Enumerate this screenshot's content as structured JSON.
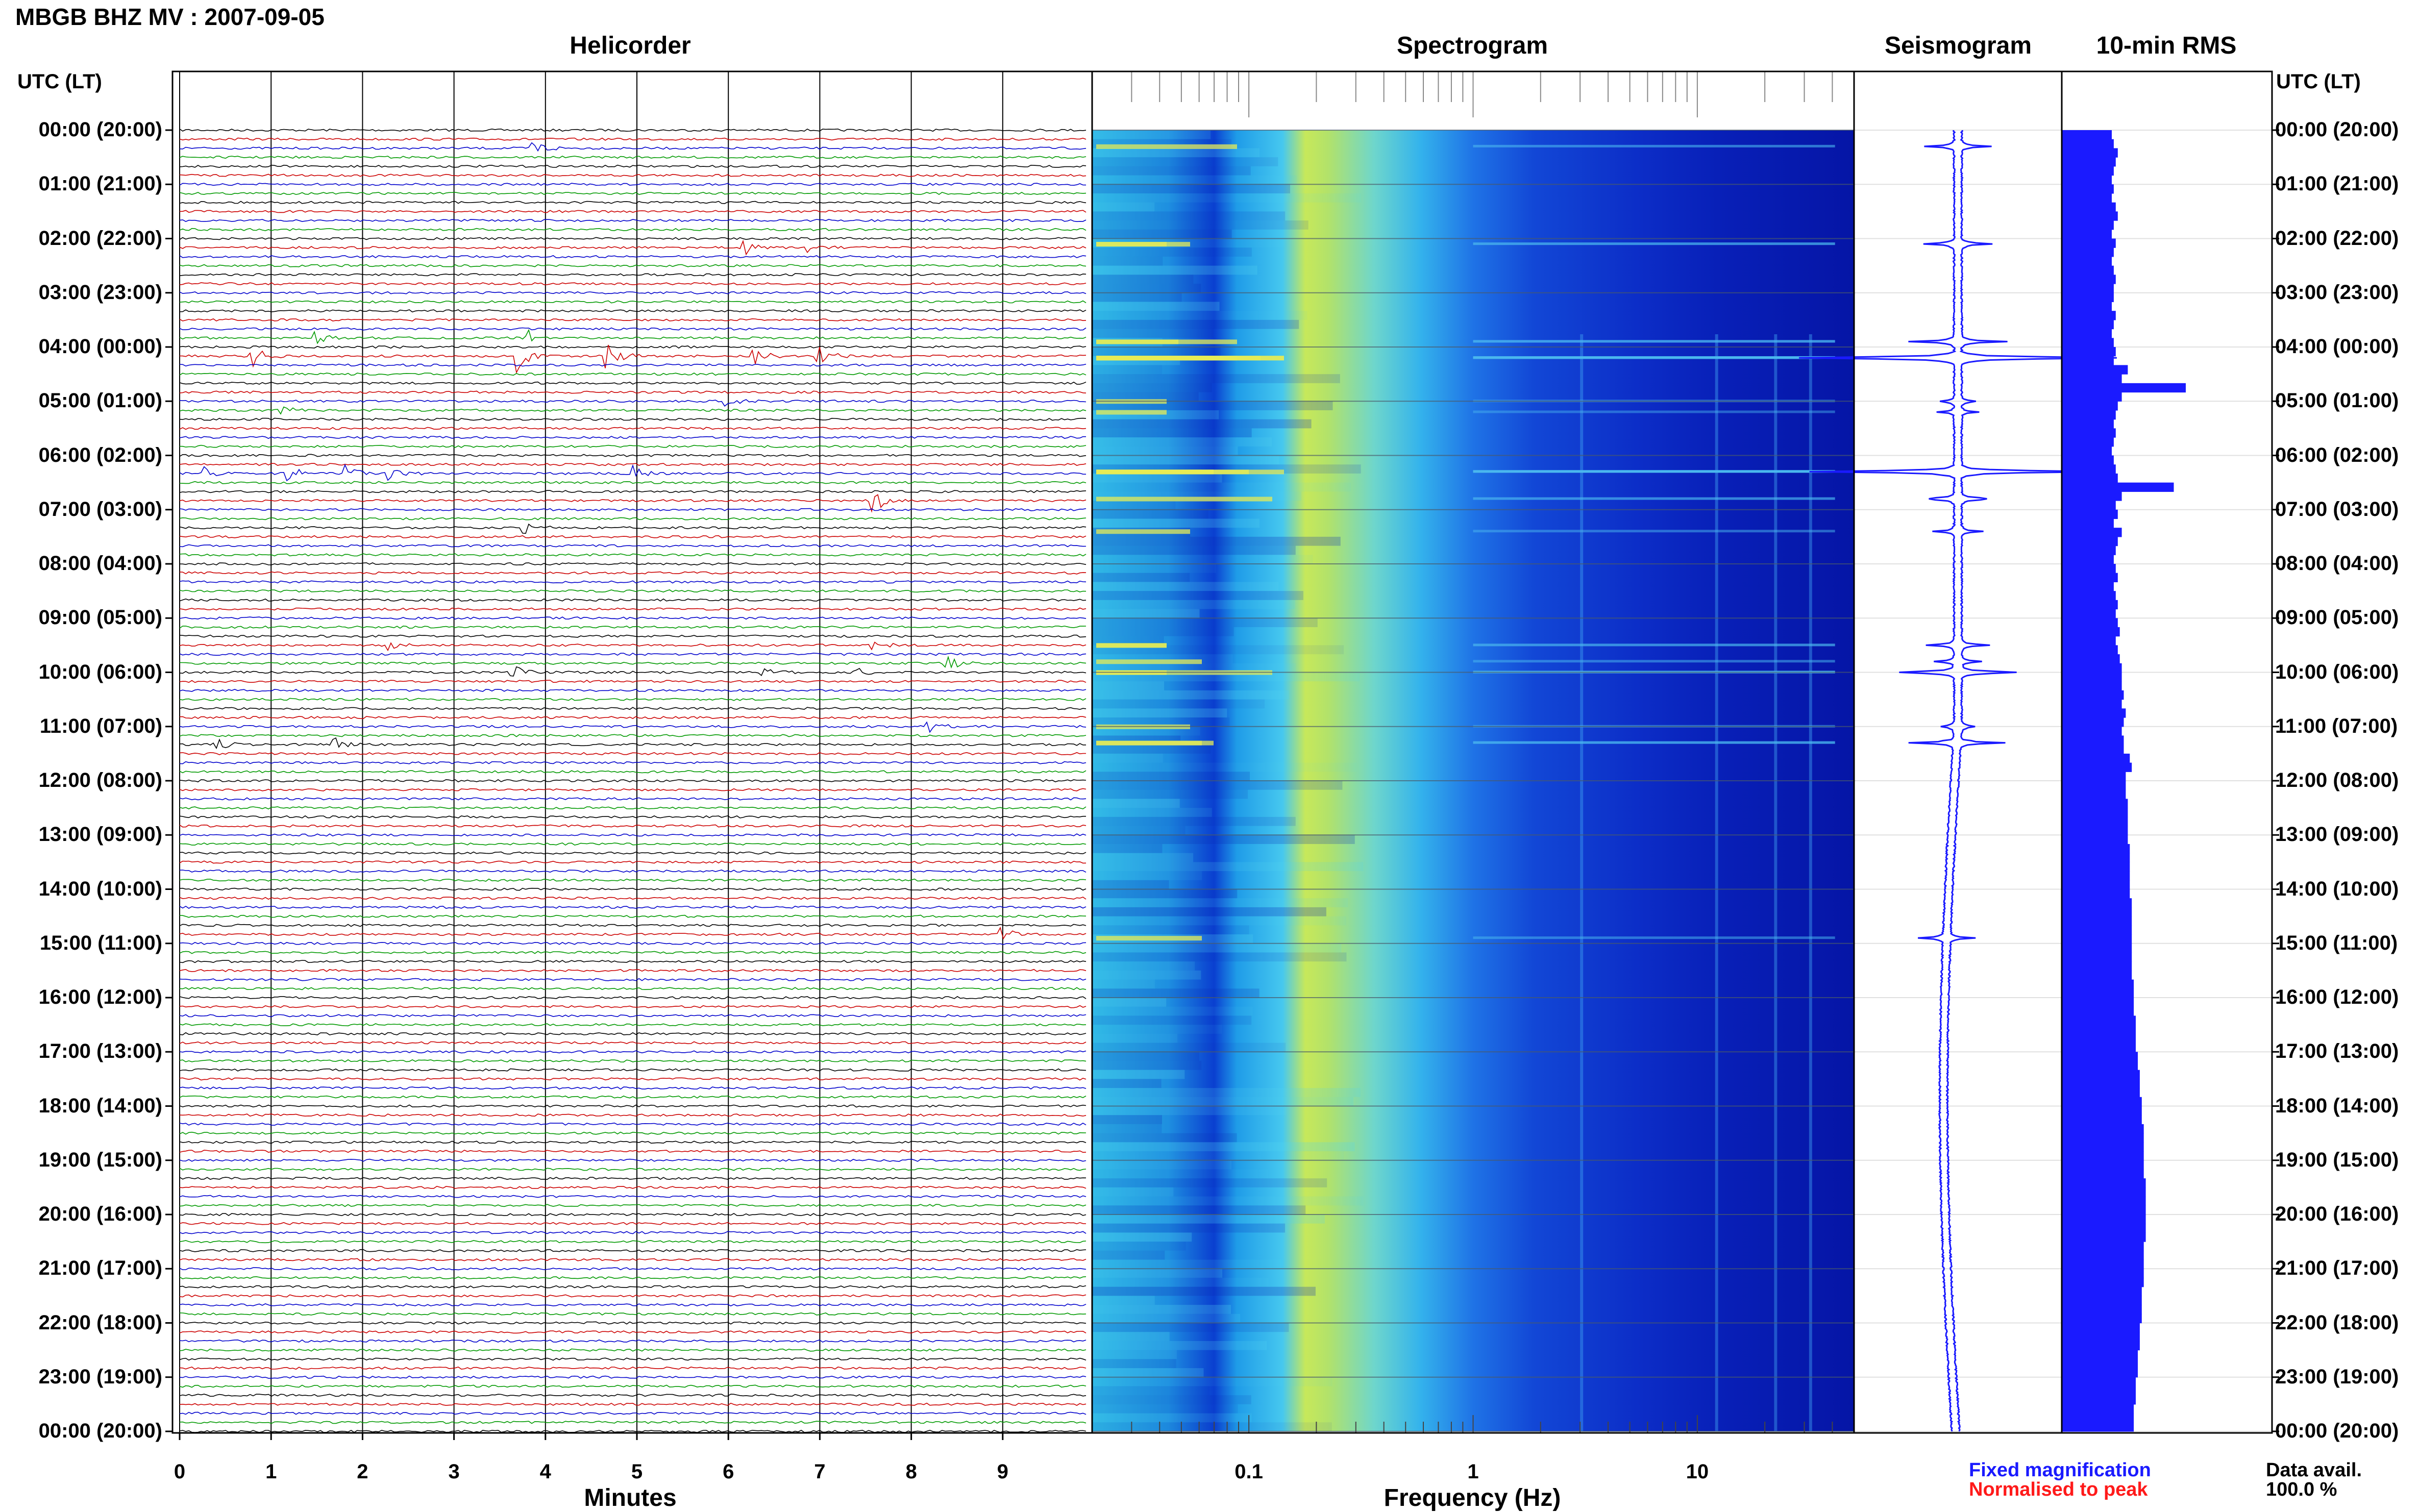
{
  "title": "MBGB BHZ MV : 2007-09-05",
  "panels": {
    "helicorder": "Helicorder",
    "spectrogram": "Spectrogram",
    "seismogram": "Seismogram",
    "rms": "10-min RMS"
  },
  "time_axis_label": "UTC (LT)",
  "time_ticks": [
    "00:00 (20:00)",
    "01:00 (21:00)",
    "02:00 (22:00)",
    "03:00 (23:00)",
    "04:00 (00:00)",
    "05:00 (01:00)",
    "06:00 (02:00)",
    "07:00 (03:00)",
    "08:00 (04:00)",
    "09:00 (05:00)",
    "10:00 (06:00)",
    "11:00 (07:00)",
    "12:00 (08:00)",
    "13:00 (09:00)",
    "14:00 (10:00)",
    "15:00 (11:00)",
    "16:00 (12:00)",
    "17:00 (13:00)",
    "18:00 (14:00)",
    "19:00 (15:00)",
    "20:00 (16:00)",
    "21:00 (17:00)",
    "22:00 (18:00)",
    "23:00 (19:00)",
    "00:00 (20:00)"
  ],
  "helicorder_axis": {
    "label": "Minutes",
    "ticks": [
      "0",
      "1",
      "2",
      "3",
      "4",
      "5",
      "6",
      "7",
      "8",
      "9"
    ]
  },
  "spectrogram_axis": {
    "label": "Frequency (Hz)",
    "ticks": [
      "0.1",
      "1",
      "10"
    ],
    "scale": "log",
    "range": [
      0.02,
      50
    ]
  },
  "legend": {
    "fixed": "Fixed magnification",
    "normalised": "Normalised to peak"
  },
  "data_availability": {
    "label": "Data avail.",
    "value": "100.0 %"
  },
  "colors": {
    "trace_cycle": [
      "#000000",
      "#cc0000",
      "#0000cc",
      "#009900"
    ],
    "fixed": "#1a1aff",
    "normalised": "#ff1a1a",
    "spectrogram_low": "#00008b",
    "spectrogram_high": "#f0f050"
  },
  "chart_data": {
    "type": "heatmap",
    "lines_per_hour": 6,
    "minutes_per_line": 10,
    "rms_10min_relative": [
      0.25,
      0.26,
      0.28,
      0.27,
      0.26,
      0.25,
      0.26,
      0.25,
      0.27,
      0.28,
      0.26,
      0.25,
      0.27,
      0.26,
      0.25,
      0.26,
      0.27,
      0.26,
      0.26,
      0.25,
      0.27,
      0.26,
      0.25,
      0.26,
      0.27,
      0.26,
      0.33,
      0.3,
      0.62,
      0.3,
      0.28,
      0.27,
      0.26,
      0.27,
      0.26,
      0.25,
      0.26,
      0.27,
      0.28,
      0.56,
      0.3,
      0.27,
      0.28,
      0.26,
      0.3,
      0.28,
      0.27,
      0.26,
      0.27,
      0.28,
      0.26,
      0.27,
      0.28,
      0.27,
      0.28,
      0.29,
      0.27,
      0.28,
      0.29,
      0.3,
      0.3,
      0.3,
      0.31,
      0.3,
      0.32,
      0.31,
      0.3,
      0.31,
      0.31,
      0.34,
      0.35,
      0.32,
      0.32,
      0.32,
      0.33,
      0.33,
      0.33,
      0.33,
      0.33,
      0.34,
      0.34,
      0.34,
      0.34,
      0.34,
      0.34,
      0.35,
      0.35,
      0.35,
      0.35,
      0.35,
      0.35,
      0.35,
      0.35,
      0.35,
      0.36,
      0.36,
      0.36,
      0.36,
      0.37,
      0.37,
      0.37,
      0.37,
      0.38,
      0.38,
      0.39,
      0.39,
      0.39,
      0.4,
      0.4,
      0.4,
      0.41,
      0.41,
      0.41,
      0.41,
      0.41,
      0.41,
      0.42,
      0.42,
      0.42,
      0.42,
      0.42,
      0.42,
      0.42,
      0.41,
      0.41,
      0.41,
      0.41,
      0.41,
      0.4,
      0.4,
      0.4,
      0.4,
      0.39,
      0.39,
      0.39,
      0.38,
      0.38,
      0.38,
      0.37,
      0.37,
      0.37,
      0.36,
      0.36,
      0.36
    ],
    "events": [
      {
        "hour": 0.3,
        "minute": 3.9,
        "amp": 1.2
      },
      {
        "hour": 2.1,
        "minute": 6.2,
        "amp": 0.8
      },
      {
        "hour": 2.1,
        "minute": 6.9,
        "amp": 0.6
      },
      {
        "hour": 3.9,
        "minute": 1.5,
        "amp": 0.7
      },
      {
        "hour": 3.9,
        "minute": 3.8,
        "amp": 1.2
      },
      {
        "hour": 4.2,
        "minute": 0.8,
        "amp": 1.4
      },
      {
        "hour": 4.2,
        "minute": 3.7,
        "amp": 2.2
      },
      {
        "hour": 4.2,
        "minute": 4.7,
        "amp": 1.6
      },
      {
        "hour": 4.2,
        "minute": 6.3,
        "amp": 1.0
      },
      {
        "hour": 4.2,
        "minute": 7.0,
        "amp": 1.2
      },
      {
        "hour": 5.0,
        "minute": 6.0,
        "amp": 0.6
      },
      {
        "hour": 5.2,
        "minute": 1.1,
        "amp": 0.6
      },
      {
        "hour": 6.3,
        "minute": 0.3,
        "amp": 1.0
      },
      {
        "hour": 6.3,
        "minute": 1.2,
        "amp": 1.3
      },
      {
        "hour": 6.3,
        "minute": 1.8,
        "amp": 1.8
      },
      {
        "hour": 6.3,
        "minute": 2.3,
        "amp": 0.9
      },
      {
        "hour": 6.3,
        "minute": 5.0,
        "amp": 1.0
      },
      {
        "hour": 6.8,
        "minute": 7.6,
        "amp": 1.5
      },
      {
        "hour": 7.4,
        "minute": 3.8,
        "amp": 0.8
      },
      {
        "hour": 9.5,
        "minute": 2.3,
        "amp": 0.6
      },
      {
        "hour": 9.5,
        "minute": 7.6,
        "amp": 0.6
      },
      {
        "hour": 9.8,
        "minute": 8.4,
        "amp": 0.9
      },
      {
        "hour": 10.0,
        "minute": 3.6,
        "amp": 1.5
      },
      {
        "hour": 10.0,
        "minute": 6.4,
        "amp": 0.6
      },
      {
        "hour": 10.0,
        "minute": 7.4,
        "amp": 0.6
      },
      {
        "hour": 11.0,
        "minute": 8.2,
        "amp": 0.8
      },
      {
        "hour": 11.3,
        "minute": 0.4,
        "amp": 0.9
      },
      {
        "hour": 11.3,
        "minute": 1.7,
        "amp": 1.0
      },
      {
        "hour": 14.9,
        "minute": 9.0,
        "amp": 0.9
      }
    ]
  }
}
